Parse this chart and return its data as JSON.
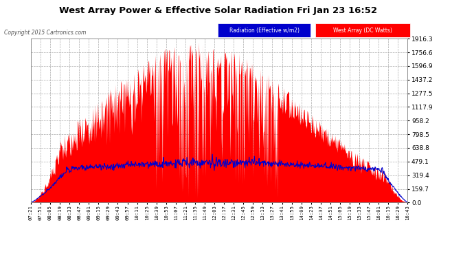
{
  "title": "West Array Power & Effective Solar Radiation Fri Jan 23 16:52",
  "copyright": "Copyright 2015 Cartronics.com",
  "legend_radiation": "Radiation (Effective w/m2)",
  "legend_west": "West Array (DC Watts)",
  "y_ticks": [
    0.0,
    159.7,
    319.4,
    479.1,
    638.8,
    798.5,
    958.2,
    1117.9,
    1277.5,
    1437.2,
    1596.9,
    1756.6,
    1916.3
  ],
  "x_labels": [
    "07:21",
    "07:51",
    "08:05",
    "08:19",
    "08:33",
    "08:47",
    "09:01",
    "09:15",
    "09:29",
    "09:43",
    "09:57",
    "10:11",
    "10:25",
    "10:39",
    "10:53",
    "11:07",
    "11:21",
    "11:35",
    "11:49",
    "12:03",
    "12:17",
    "12:31",
    "12:45",
    "12:59",
    "13:13",
    "13:27",
    "13:41",
    "13:55",
    "14:09",
    "14:23",
    "14:37",
    "14:51",
    "15:05",
    "15:19",
    "15:33",
    "15:47",
    "16:01",
    "16:15",
    "16:29",
    "16:43"
  ],
  "fig_bg": "#ffffff",
  "plot_bg": "#ffffff",
  "grid_color": "#aaaaaa",
  "red_color": "#ff0000",
  "blue_color": "#0000cc",
  "title_color": "#000000",
  "tick_color": "#000000",
  "legend_radiation_bg": "#0000cc",
  "legend_west_bg": "#ff0000",
  "ymax": 1916.3,
  "fig_width": 6.9,
  "fig_height": 3.75,
  "dpi": 100
}
